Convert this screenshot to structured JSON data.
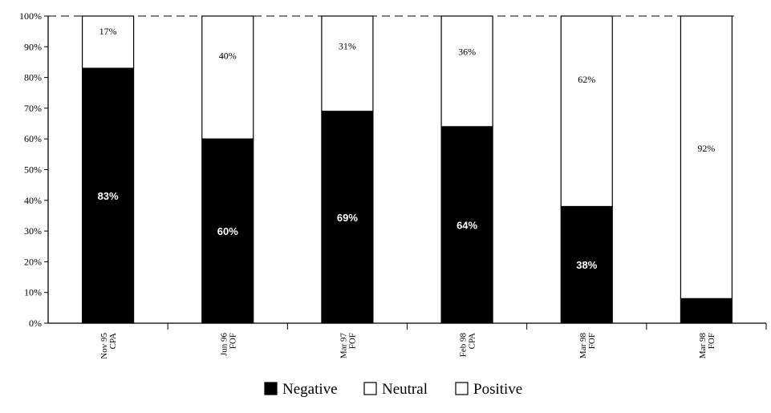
{
  "chart_data": {
    "type": "bar",
    "stacked": true,
    "percent": true,
    "categories": [
      "Nov 95\nCPA",
      "Jun 96\nFOF",
      "Mar 97\nFOF",
      "Feb 98\nCPA",
      "Mar 98\nFOF",
      "Mar 98\nFOF"
    ],
    "series": [
      {
        "name": "Negative",
        "color": "#000000",
        "values": [
          83,
          60,
          69,
          64,
          38,
          8
        ],
        "labels": [
          "83%",
          "60%",
          "69%",
          "64%",
          "38%",
          ""
        ]
      },
      {
        "name": "Neutral",
        "color": "#ffffff",
        "values": [
          0,
          0,
          0,
          0,
          0,
          0
        ],
        "labels": [
          "",
          "",
          "",
          "",
          "",
          ""
        ]
      },
      {
        "name": "Positive",
        "color": "#ffffff",
        "values": [
          17,
          40,
          31,
          36,
          62,
          92
        ],
        "labels": [
          "17%",
          "40%",
          "31%",
          "36%",
          "62%",
          "92%"
        ]
      }
    ],
    "yticks": [
      "0%",
      "10%",
      "20%",
      "30%",
      "40%",
      "50%",
      "60%",
      "70%",
      "80%",
      "90%",
      "100%"
    ],
    "ylim": [
      0,
      100
    ],
    "grid": false,
    "legend": "bottom-center",
    "title": "",
    "xlabel": "",
    "ylabel": ""
  }
}
